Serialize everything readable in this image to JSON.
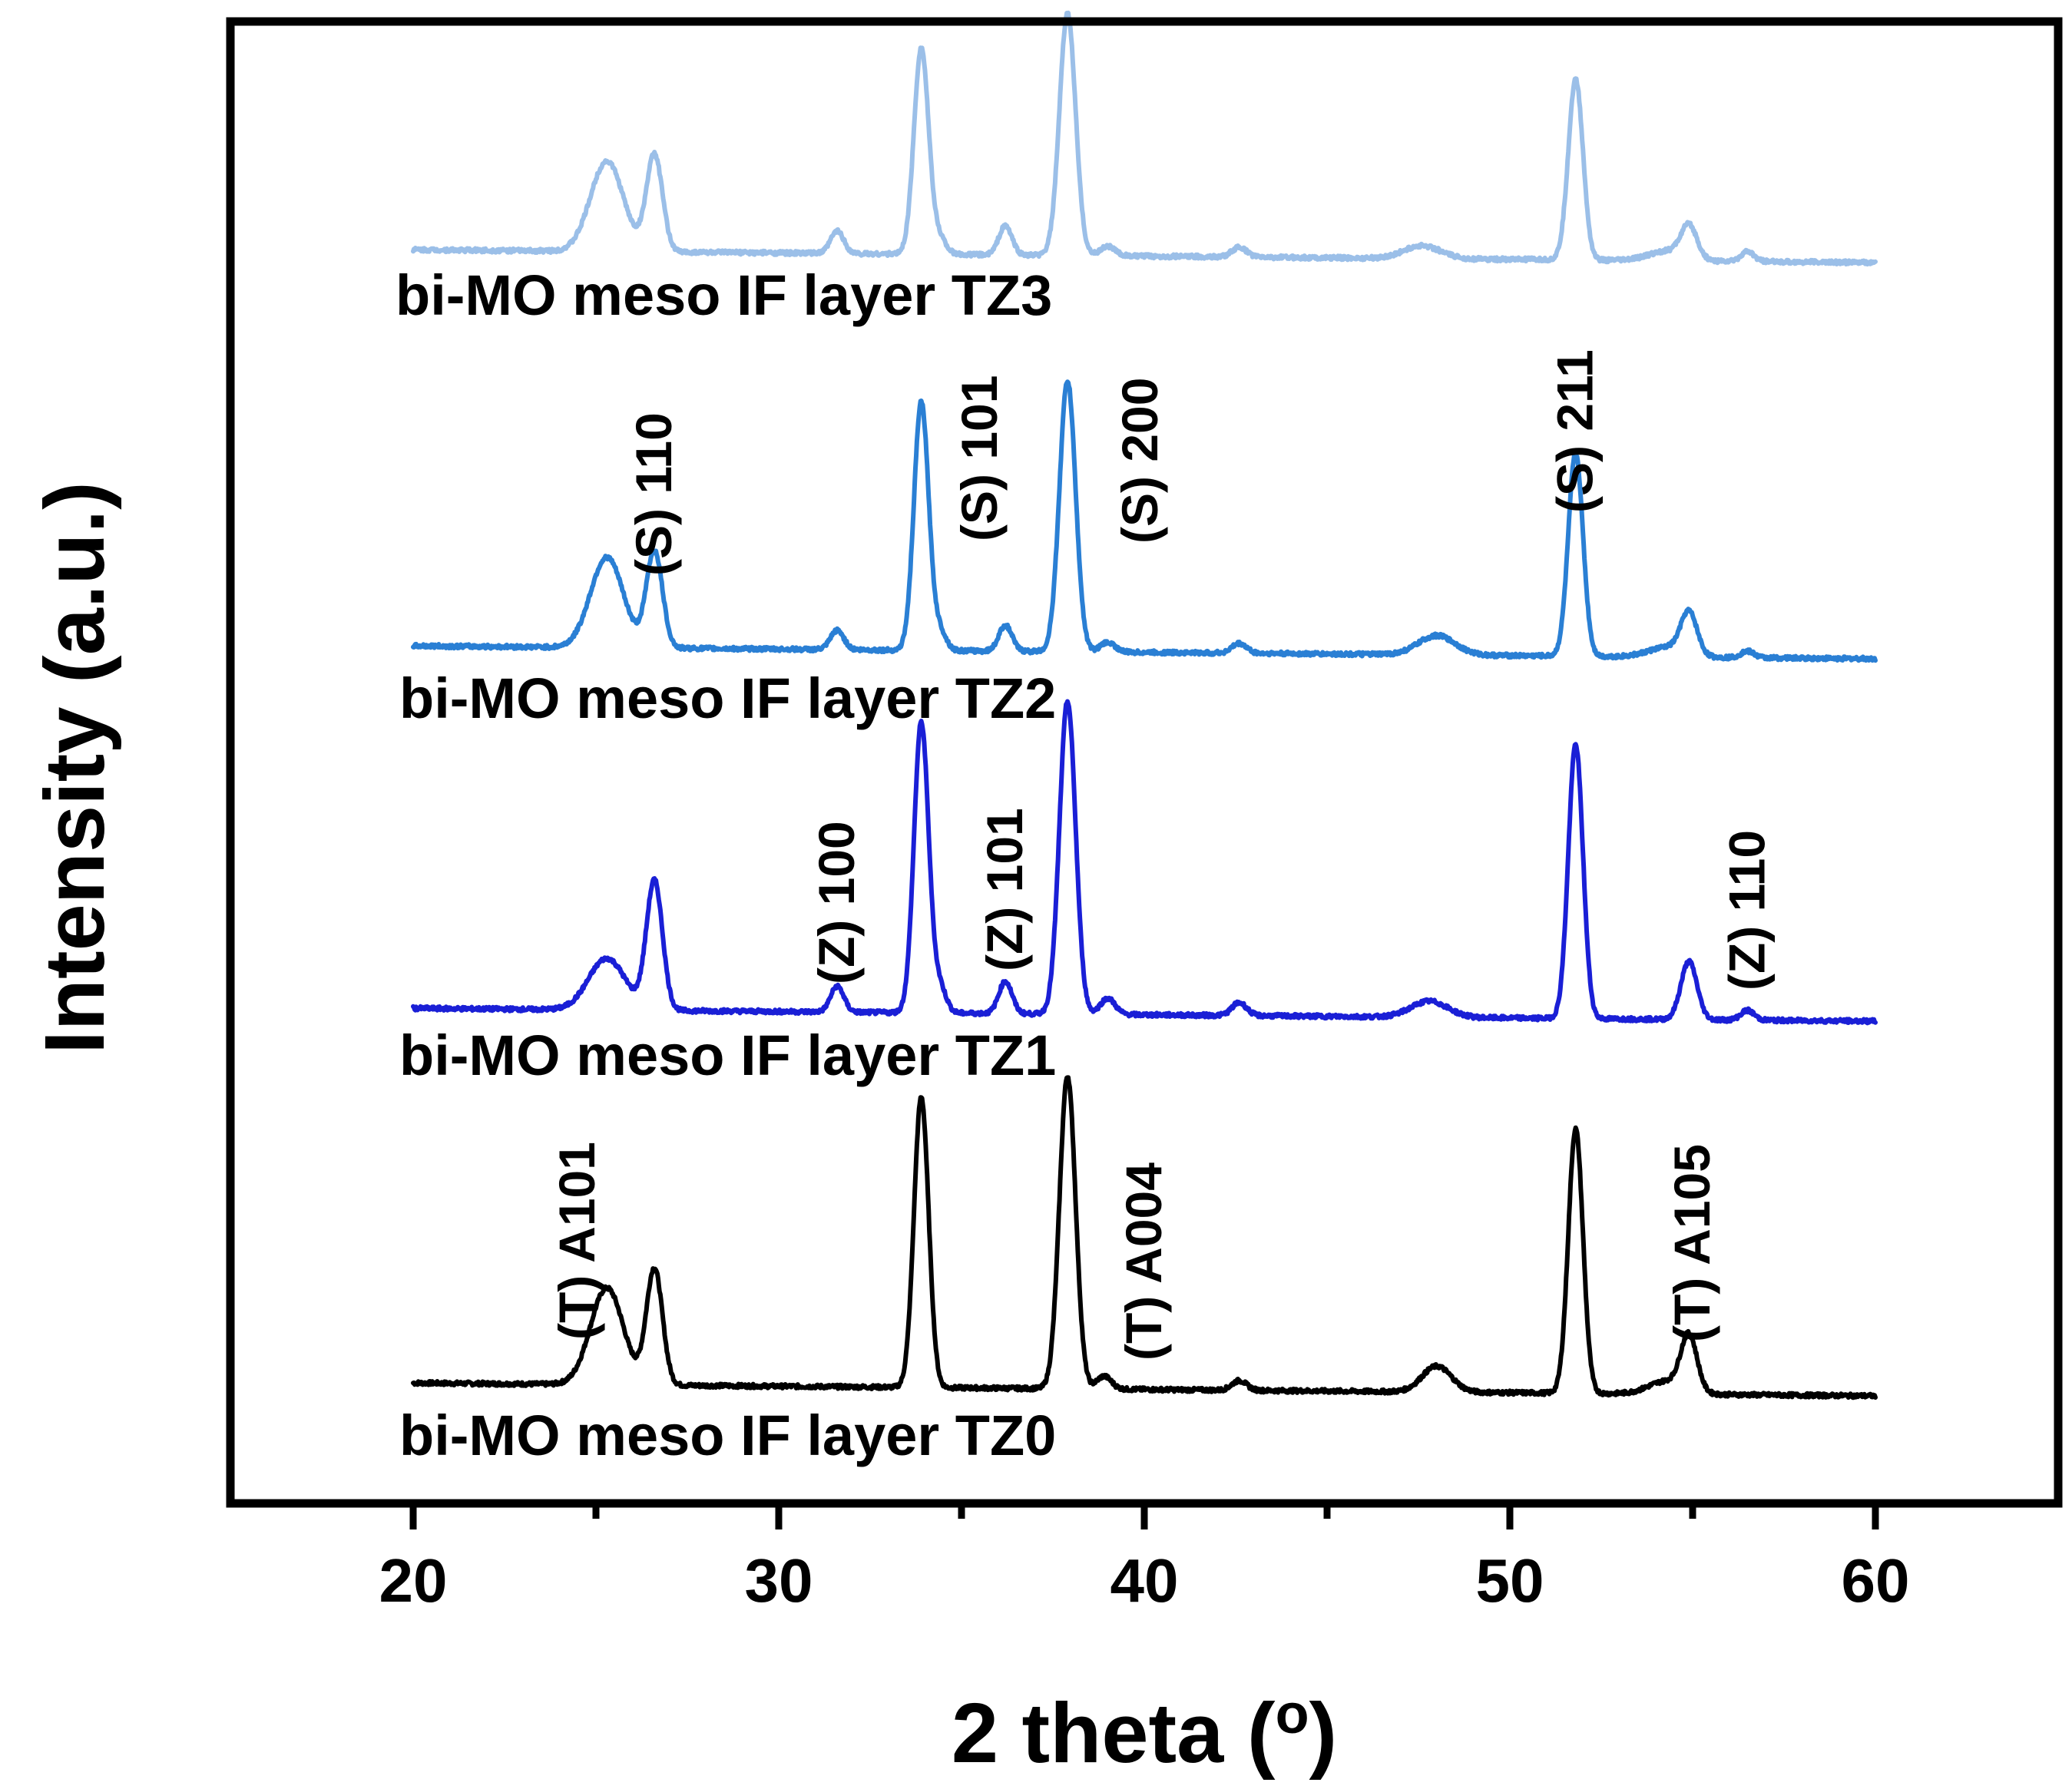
{
  "chart_data": {
    "type": "line",
    "title": "",
    "xlabel": "2 theta (o)",
    "ylabel": "Intensity (a.u.)",
    "xlim": [
      15,
      65
    ],
    "xticks": [
      20,
      30,
      40,
      50,
      60
    ],
    "minor_xticks": [
      25,
      35,
      45,
      55
    ],
    "yticks_shown": false,
    "series": [
      {
        "name": "bi-MO meso IF layer TZ0",
        "color": "#000000",
        "baseline_start": 0.04,
        "baseline_end": 0.0,
        "peaks": [
          {
            "x": 25.3,
            "h": 0.3,
            "w": 0.45
          },
          {
            "x": 26.6,
            "h": 0.36,
            "w": 0.22
          },
          {
            "x": 33.9,
            "h": 0.9,
            "w": 0.2
          },
          {
            "x": 37.9,
            "h": 0.97,
            "w": 0.22
          },
          {
            "x": 38.9,
            "h": 0.04,
            "w": 0.2
          },
          {
            "x": 42.6,
            "h": 0.03,
            "w": 0.2
          },
          {
            "x": 48.0,
            "h": 0.08,
            "w": 0.4
          },
          {
            "x": 51.8,
            "h": 0.82,
            "w": 0.2
          },
          {
            "x": 54.3,
            "h": 0.04,
            "w": 0.5
          },
          {
            "x": 54.9,
            "h": 0.17,
            "w": 0.22
          }
        ]
      },
      {
        "name": "bi-MO meso IF layer TZ1",
        "color": "#1a1fd6",
        "baseline_start": 0.04,
        "baseline_end": 0.0,
        "peaks": [
          {
            "x": 25.3,
            "h": 0.16,
            "w": 0.5
          },
          {
            "x": 26.6,
            "h": 0.4,
            "w": 0.22
          },
          {
            "x": 31.6,
            "h": 0.08,
            "w": 0.18
          },
          {
            "x": 33.9,
            "h": 0.9,
            "w": 0.2
          },
          {
            "x": 34.4,
            "h": 0.08,
            "w": 0.18
          },
          {
            "x": 36.2,
            "h": 0.1,
            "w": 0.18
          },
          {
            "x": 37.9,
            "h": 0.97,
            "w": 0.22
          },
          {
            "x": 39.0,
            "h": 0.05,
            "w": 0.2
          },
          {
            "x": 42.6,
            "h": 0.04,
            "w": 0.2
          },
          {
            "x": 47.8,
            "h": 0.05,
            "w": 0.5
          },
          {
            "x": 51.8,
            "h": 0.85,
            "w": 0.2
          },
          {
            "x": 54.9,
            "h": 0.18,
            "w": 0.22
          },
          {
            "x": 56.5,
            "h": 0.03,
            "w": 0.18
          }
        ]
      },
      {
        "name": "bi-MO meso IF layer TZ2",
        "color": "#2a7fd4",
        "baseline_start": 0.04,
        "baseline_end": 0.0,
        "peaks": [
          {
            "x": 25.3,
            "h": 0.28,
            "w": 0.45
          },
          {
            "x": 26.6,
            "h": 0.3,
            "w": 0.22
          },
          {
            "x": 31.6,
            "h": 0.06,
            "w": 0.18
          },
          {
            "x": 33.9,
            "h": 0.77,
            "w": 0.2
          },
          {
            "x": 34.4,
            "h": 0.06,
            "w": 0.18
          },
          {
            "x": 36.2,
            "h": 0.08,
            "w": 0.18
          },
          {
            "x": 37.9,
            "h": 0.84,
            "w": 0.22
          },
          {
            "x": 39.0,
            "h": 0.03,
            "w": 0.2
          },
          {
            "x": 42.6,
            "h": 0.03,
            "w": 0.2
          },
          {
            "x": 48.0,
            "h": 0.06,
            "w": 0.5
          },
          {
            "x": 51.8,
            "h": 0.63,
            "w": 0.2
          },
          {
            "x": 54.3,
            "h": 0.03,
            "w": 0.5
          },
          {
            "x": 54.9,
            "h": 0.13,
            "w": 0.22
          },
          {
            "x": 56.5,
            "h": 0.02,
            "w": 0.18
          }
        ]
      },
      {
        "name": "bi-MO meso IF layer TZ3",
        "color": "#9bbfe8",
        "baseline_start": 0.04,
        "baseline_end": 0.0,
        "peaks": [
          {
            "x": 25.3,
            "h": 0.28,
            "w": 0.45
          },
          {
            "x": 26.6,
            "h": 0.3,
            "w": 0.22
          },
          {
            "x": 31.6,
            "h": 0.07,
            "w": 0.18
          },
          {
            "x": 33.9,
            "h": 0.64,
            "w": 0.2
          },
          {
            "x": 34.4,
            "h": 0.05,
            "w": 0.18
          },
          {
            "x": 36.2,
            "h": 0.09,
            "w": 0.18
          },
          {
            "x": 37.9,
            "h": 0.75,
            "w": 0.22
          },
          {
            "x": 39.0,
            "h": 0.03,
            "w": 0.2
          },
          {
            "x": 42.6,
            "h": 0.03,
            "w": 0.2
          },
          {
            "x": 47.6,
            "h": 0.04,
            "w": 0.5
          },
          {
            "x": 51.8,
            "h": 0.56,
            "w": 0.2
          },
          {
            "x": 54.3,
            "h": 0.03,
            "w": 0.5
          },
          {
            "x": 54.9,
            "h": 0.1,
            "w": 0.22
          },
          {
            "x": 56.5,
            "h": 0.03,
            "w": 0.18
          }
        ]
      }
    ],
    "peak_annotations": [
      {
        "text": "(S) 110",
        "x": 26.6,
        "series": "bi-MO meso IF layer TZ2"
      },
      {
        "text": "(S) 101",
        "x": 35.5,
        "series": "bi-MO meso IF layer TZ2"
      },
      {
        "text": "(S) 200",
        "x": 39.9,
        "series": "bi-MO meso IF layer TZ2"
      },
      {
        "text": "(S) 211",
        "x": 51.8,
        "series": "bi-MO meso IF layer TZ2"
      },
      {
        "text": "(Z) 100",
        "x": 31.6,
        "series": "bi-MO meso IF layer TZ1"
      },
      {
        "text": "(Z) 101",
        "x": 36.2,
        "series": "bi-MO meso IF layer TZ1"
      },
      {
        "text": "(Z) 110",
        "x": 56.5,
        "series": "bi-MO meso IF layer TZ1"
      },
      {
        "text": "(T) A101",
        "x": 24.5,
        "series": "bi-MO meso IF layer TZ0"
      },
      {
        "text": "(T) A004",
        "x": 40.0,
        "series": "bi-MO meso IF layer TZ0"
      },
      {
        "text": "(T) A105",
        "x": 55.0,
        "series": "bi-MO meso IF layer TZ0"
      }
    ]
  }
}
